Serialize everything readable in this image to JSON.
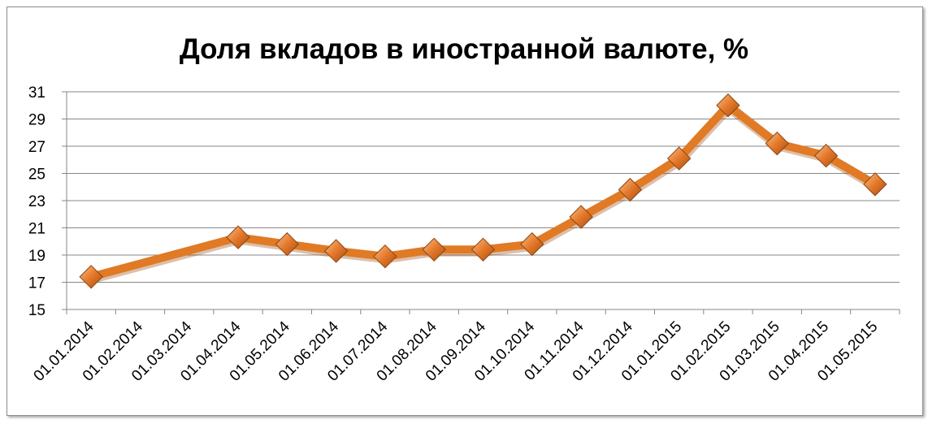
{
  "chart_data": {
    "type": "line",
    "title": "Доля вкладов в иностранной валюте, %",
    "xlabel": "",
    "ylabel": "",
    "categories": [
      "01.01.2014",
      "01.02.2014",
      "01.03.2014",
      "01.04.2014",
      "01.05.2014",
      "01.06.2014",
      "01.07.2014",
      "01.08.2014",
      "01.09.2014",
      "01.10.2014",
      "01.11.2014",
      "01.12.2014",
      "01.01.2015",
      "01.02.2015",
      "01.03.2015",
      "01.04.2015",
      "01.05.2015"
    ],
    "y_ticks": [
      15,
      17,
      19,
      21,
      23,
      25,
      27,
      29,
      31
    ],
    "ylim": [
      15,
      31
    ],
    "grid": true,
    "legend": "none",
    "series": [
      {
        "color": "#e07a24",
        "marker": "diamond",
        "points": [
          {
            "x": "01.01.2014",
            "y": 17.4
          },
          {
            "x": "01.04.2014",
            "y": 20.3
          },
          {
            "x": "01.05.2014",
            "y": 19.8
          },
          {
            "x": "01.06.2014",
            "y": 19.3
          },
          {
            "x": "01.07.2014",
            "y": 18.9
          },
          {
            "x": "01.08.2014",
            "y": 19.4
          },
          {
            "x": "01.09.2014",
            "y": 19.4
          },
          {
            "x": "01.10.2014",
            "y": 19.8
          },
          {
            "x": "01.11.2014",
            "y": 21.8
          },
          {
            "x": "01.12.2014",
            "y": 23.8
          },
          {
            "x": "01.01.2015",
            "y": 26.1
          },
          {
            "x": "01.02.2015",
            "y": 30.0
          },
          {
            "x": "01.03.2015",
            "y": 27.2
          },
          {
            "x": "01.04.2015",
            "y": 26.3
          },
          {
            "x": "01.05.2015",
            "y": 24.2
          }
        ]
      }
    ]
  }
}
